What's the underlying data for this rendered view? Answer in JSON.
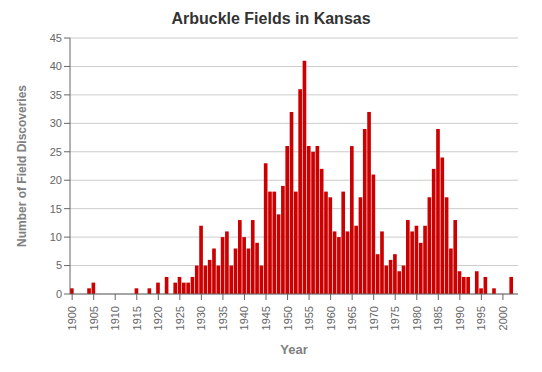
{
  "chart_data": {
    "type": "bar",
    "title": "Arbuckle Fields in Kansas",
    "xlabel": "Year",
    "ylabel": "Number of Field Discoveries",
    "x": [
      1900,
      1901,
      1902,
      1903,
      1904,
      1905,
      1906,
      1907,
      1908,
      1909,
      1910,
      1911,
      1912,
      1913,
      1914,
      1915,
      1916,
      1917,
      1918,
      1919,
      1920,
      1921,
      1922,
      1923,
      1924,
      1925,
      1926,
      1927,
      1928,
      1929,
      1930,
      1931,
      1932,
      1933,
      1934,
      1935,
      1936,
      1937,
      1938,
      1939,
      1940,
      1941,
      1942,
      1943,
      1944,
      1945,
      1946,
      1947,
      1948,
      1949,
      1950,
      1951,
      1952,
      1953,
      1954,
      1955,
      1956,
      1957,
      1958,
      1959,
      1960,
      1961,
      1962,
      1963,
      1964,
      1965,
      1966,
      1967,
      1968,
      1969,
      1970,
      1971,
      1972,
      1973,
      1974,
      1975,
      1976,
      1977,
      1978,
      1979,
      1980,
      1981,
      1982,
      1983,
      1984,
      1985,
      1986,
      1987,
      1988,
      1989,
      1990,
      1991,
      1992,
      1993,
      1994,
      1995,
      1996,
      1997,
      1998,
      1999,
      2000,
      2001,
      2002,
      2003
    ],
    "values": [
      1,
      0,
      0,
      0,
      1,
      2,
      0,
      0,
      0,
      0,
      0,
      0,
      0,
      0,
      0,
      1,
      0,
      0,
      1,
      0,
      2,
      0,
      3,
      0,
      2,
      3,
      2,
      2,
      3,
      5,
      12,
      5,
      6,
      8,
      5,
      10,
      11,
      5,
      8,
      13,
      10,
      8,
      13,
      9,
      5,
      23,
      18,
      18,
      14,
      19,
      26,
      32,
      18,
      36,
      41,
      26,
      25,
      26,
      22,
      18,
      17,
      11,
      10,
      18,
      11,
      26,
      12,
      17,
      29,
      32,
      21,
      7,
      11,
      5,
      6,
      7,
      4,
      5,
      13,
      11,
      12,
      9,
      12,
      17,
      22,
      29,
      24,
      17,
      8,
      13,
      4,
      3,
      3,
      0,
      4,
      1,
      3,
      0,
      1,
      0,
      0,
      0,
      3,
      0
    ],
    "color": "#CC0000",
    "xlim": [
      1899.5,
      2003.5
    ],
    "xticks": [
      1900,
      1905,
      1910,
      1915,
      1920,
      1925,
      1930,
      1935,
      1940,
      1945,
      1950,
      1955,
      1960,
      1965,
      1970,
      1975,
      1980,
      1985,
      1990,
      1995,
      2000
    ],
    "ylim": [
      0,
      45
    ],
    "yticks": [
      0,
      5,
      10,
      15,
      20,
      25,
      30,
      35,
      40,
      45
    ],
    "grid": true
  }
}
